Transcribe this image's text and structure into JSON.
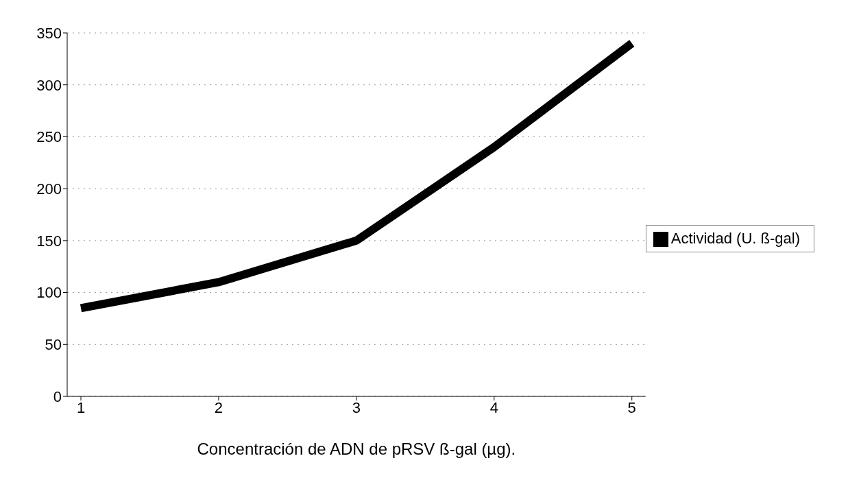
{
  "chart_data": {
    "type": "line",
    "xlabel": "Concentración de ADN de pRSV ß-gal (µg).",
    "categories": [
      "1",
      "2",
      "3",
      "4",
      "5"
    ],
    "series": [
      {
        "name": "Actividad (U. ß-gal)",
        "color": "#000000",
        "values": [
          85,
          110,
          150,
          240,
          340
        ]
      }
    ],
    "ylim": [
      0,
      350
    ],
    "yticks": [
      0,
      50,
      100,
      150,
      200,
      250,
      300,
      350
    ],
    "grid": "y",
    "legend": "right",
    "marker": "none",
    "line_style": "solid"
  }
}
